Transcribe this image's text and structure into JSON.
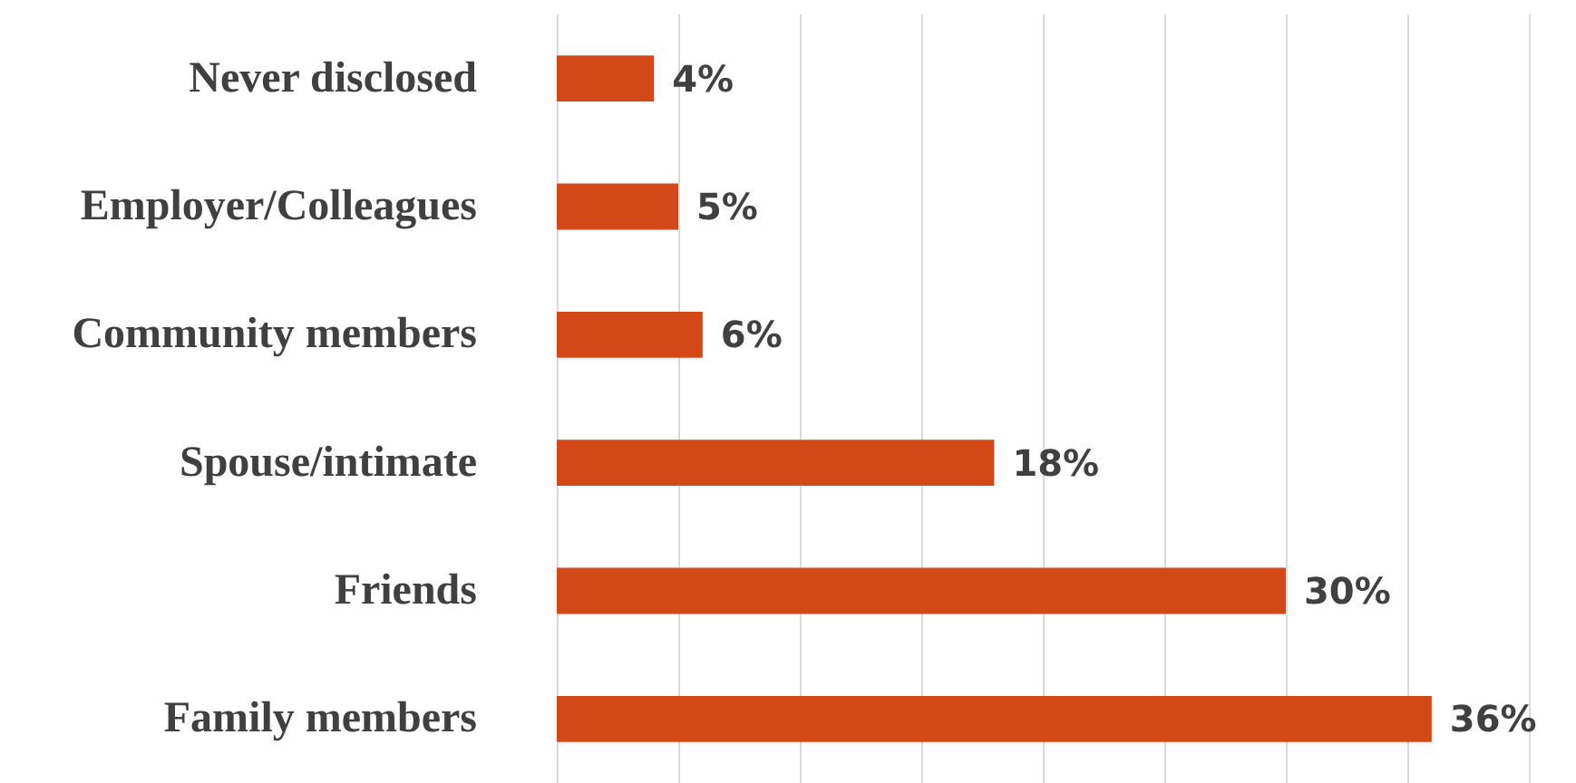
{
  "chart_data": {
    "type": "bar",
    "orientation": "horizontal",
    "categories": [
      "Never disclosed",
      "Employer/Colleagues",
      "Community members",
      "Spouse/intimate",
      "Friends",
      "Family members"
    ],
    "values": [
      4,
      5,
      6,
      18,
      30,
      36
    ],
    "value_labels": [
      "4%",
      "5%",
      "6%",
      "18%",
      "30%",
      "36%"
    ],
    "color": "#d34817",
    "xlim": [
      0,
      40
    ],
    "xticks": [
      {
        "value": 0,
        "label": null
      },
      {
        "value": 5,
        "label": null
      },
      {
        "value": 10,
        "label": null
      },
      {
        "value": 15,
        "label": null
      },
      {
        "value": 20,
        "label": null
      },
      {
        "value": 25,
        "label": null
      },
      {
        "value": 30,
        "label": null
      },
      {
        "value": 35,
        "label": null
      },
      {
        "value": 40,
        "label": null
      }
    ],
    "grid": "x",
    "tick_labels": "y"
  }
}
